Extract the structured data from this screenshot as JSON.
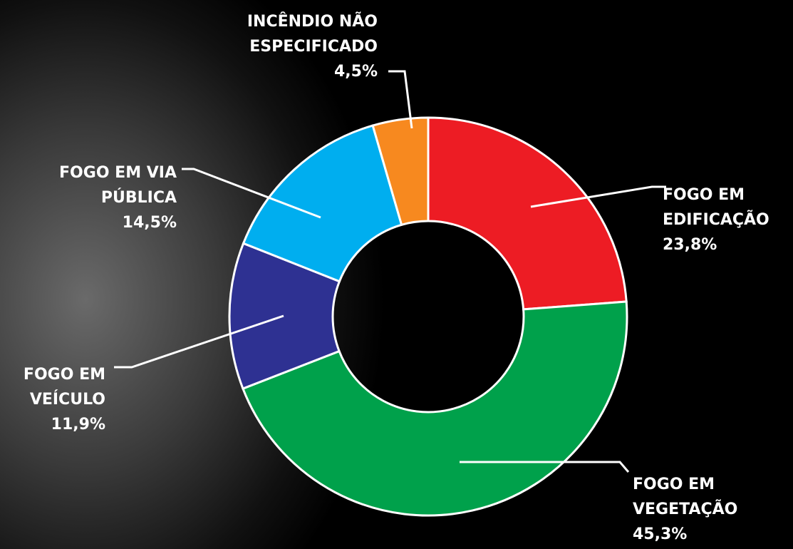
{
  "chart_data": {
    "type": "donut",
    "categories": [
      "FOGO EM\nEDIFICAÇÃO",
      "FOGO EM\nVEGETAÇÃO",
      "FOGO EM\nVEÍCULO",
      "FOGO EM VIA\nPÚBLICA",
      "INCÊNDIO NÃO\nESPECIFICADO"
    ],
    "values": [
      23.8,
      45.3,
      11.9,
      14.5,
      4.5
    ],
    "value_labels": [
      "23,8%",
      "45,3%",
      "11,9%",
      "14,5%",
      "4,5%"
    ],
    "colors": [
      "#ed1c24",
      "#00a14b",
      "#2e3192",
      "#00aeef",
      "#f7891f"
    ]
  }
}
